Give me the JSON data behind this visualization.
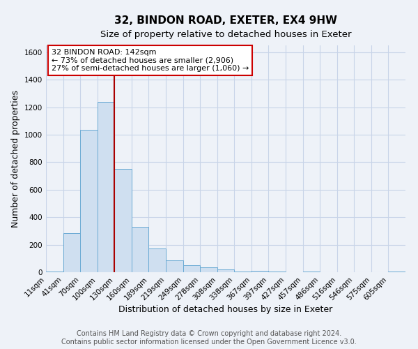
{
  "title": "32, BINDON ROAD, EXETER, EX4 9HW",
  "subtitle": "Size of property relative to detached houses in Exeter",
  "xlabel": "Distribution of detached houses by size in Exeter",
  "ylabel": "Number of detached properties",
  "bin_labels": [
    "11sqm",
    "41sqm",
    "70sqm",
    "100sqm",
    "130sqm",
    "160sqm",
    "189sqm",
    "219sqm",
    "249sqm",
    "278sqm",
    "308sqm",
    "338sqm",
    "367sqm",
    "397sqm",
    "427sqm",
    "457sqm",
    "486sqm",
    "516sqm",
    "546sqm",
    "575sqm",
    "605sqm"
  ],
  "bar_heights": [
    5,
    285,
    1035,
    1240,
    750,
    330,
    175,
    85,
    50,
    35,
    20,
    5,
    10,
    5,
    0,
    5,
    0,
    0,
    0,
    0,
    5
  ],
  "bar_color": "#cfdff0",
  "bar_edge_color": "#6aaad4",
  "ylim": [
    0,
    1650
  ],
  "yticks": [
    0,
    200,
    400,
    600,
    800,
    1000,
    1200,
    1400,
    1600
  ],
  "vline_x": 3.4,
  "vline_color": "#aa0000",
  "annotation_title": "32 BINDON ROAD: 142sqm",
  "annotation_line1": "← 73% of detached houses are smaller (2,906)",
  "annotation_line2": "27% of semi-detached houses are larger (1,060) →",
  "annotation_box_color": "#ffffff",
  "annotation_box_edge": "#cc0000",
  "footer_line1": "Contains HM Land Registry data © Crown copyright and database right 2024.",
  "footer_line2": "Contains public sector information licensed under the Open Government Licence v3.0.",
  "grid_color": "#c8d4e8",
  "background_color": "#eef2f8",
  "title_fontsize": 11,
  "subtitle_fontsize": 9.5,
  "axis_label_fontsize": 9,
  "tick_fontsize": 7.5,
  "annotation_fontsize": 8,
  "footer_fontsize": 7
}
